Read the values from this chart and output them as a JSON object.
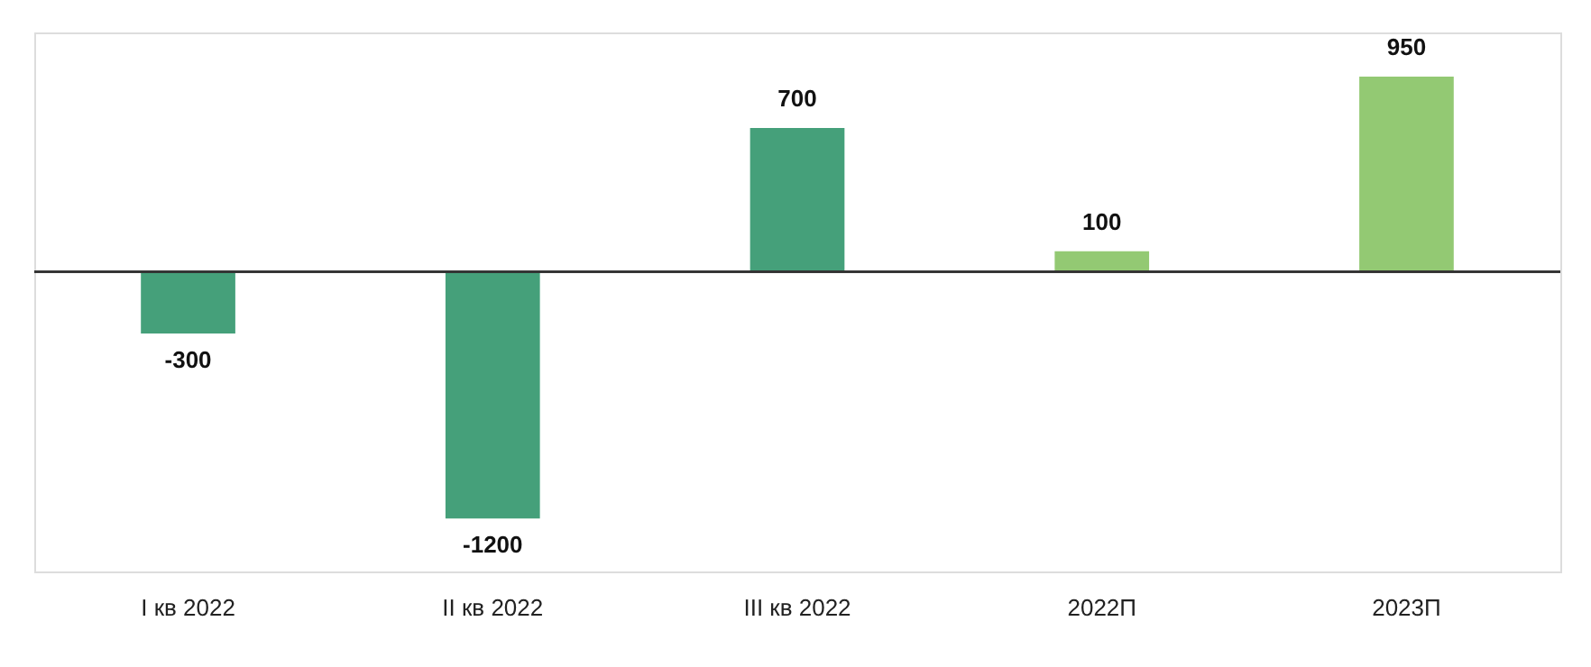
{
  "chart_data": {
    "type": "bar",
    "categories": [
      "I кв 2022",
      "II кв 2022",
      "III кв 2022",
      "2022П",
      "2023П"
    ],
    "values": [
      -300,
      -1200,
      700,
      100,
      950
    ],
    "colors": [
      "#45a07a",
      "#45a07a",
      "#45a07a",
      "#93c973",
      "#93c973"
    ],
    "data_labels": true
  }
}
